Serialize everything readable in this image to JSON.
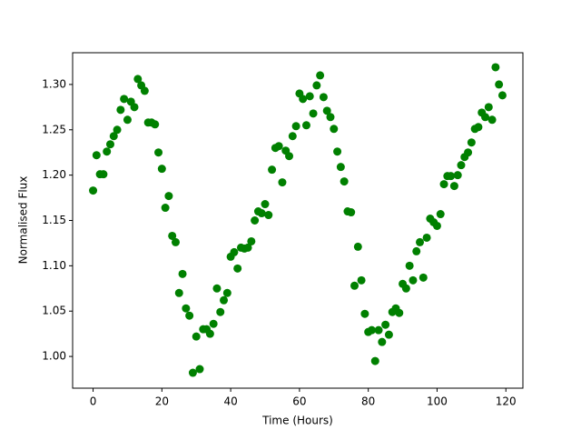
{
  "chart_data": {
    "type": "scatter",
    "xlabel": "Time (Hours)",
    "ylabel": "Normalised Flux",
    "color": "#008000",
    "x": [
      0,
      1,
      2,
      3,
      4,
      5,
      6,
      7,
      8,
      9,
      10,
      11,
      12,
      13,
      14,
      15,
      16,
      17,
      18,
      19,
      20,
      21,
      22,
      23,
      24,
      25,
      26,
      27,
      28,
      29,
      30,
      31,
      32,
      33,
      34,
      35,
      36,
      37,
      38,
      39,
      40,
      41,
      42,
      43,
      44,
      45,
      46,
      47,
      48,
      49,
      50,
      51,
      52,
      53,
      54,
      55,
      56,
      57,
      58,
      59,
      60,
      61,
      62,
      63,
      64,
      65,
      66,
      67,
      68,
      69,
      70,
      71,
      72,
      73,
      74,
      75,
      76,
      77,
      78,
      79,
      80,
      81,
      82,
      83,
      84,
      85,
      86,
      87,
      88,
      89,
      90,
      91,
      92,
      93,
      94,
      95,
      96,
      97,
      98,
      99,
      100,
      101,
      102,
      103,
      104,
      105,
      106,
      107,
      108,
      109,
      110,
      111,
      112,
      113,
      114,
      115,
      116,
      117,
      118,
      119
    ],
    "y": [
      1.183,
      1.222,
      1.201,
      1.201,
      1.226,
      1.234,
      1.243,
      1.25,
      1.272,
      1.284,
      1.261,
      1.281,
      1.275,
      1.306,
      1.299,
      1.293,
      1.258,
      1.258,
      1.256,
      1.225,
      1.207,
      1.164,
      1.177,
      1.133,
      1.126,
      1.07,
      1.091,
      1.053,
      1.045,
      0.982,
      1.022,
      0.986,
      1.03,
      1.03,
      1.025,
      1.036,
      1.075,
      1.049,
      1.062,
      1.07,
      1.11,
      1.115,
      1.097,
      1.12,
      1.119,
      1.12,
      1.127,
      1.15,
      1.16,
      1.158,
      1.168,
      1.156,
      1.206,
      1.23,
      1.232,
      1.192,
      1.227,
      1.221,
      1.243,
      1.254,
      1.29,
      1.284,
      1.255,
      1.287,
      1.268,
      1.299,
      1.31,
      1.286,
      1.271,
      1.264,
      1.251,
      1.226,
      1.209,
      1.193,
      1.16,
      1.159,
      1.078,
      1.121,
      1.084,
      1.047,
      1.027,
      1.029,
      0.995,
      1.029,
      1.016,
      1.035,
      1.024,
      1.049,
      1.053,
      1.048,
      1.08,
      1.075,
      1.1,
      1.084,
      1.116,
      1.126,
      1.087,
      1.131,
      1.152,
      1.148,
      1.144,
      1.157,
      1.19,
      1.199,
      1.199,
      1.188,
      1.2,
      1.211,
      1.22,
      1.225,
      1.236,
      1.251,
      1.253,
      1.269,
      1.264,
      1.275,
      1.261,
      1.319,
      1.3,
      1.288
    ],
    "xlim": [
      -5.95,
      124.95
    ],
    "ylim": [
      0.965,
      1.335
    ],
    "xticks": [
      0,
      20,
      40,
      60,
      80,
      100,
      120
    ],
    "yticks": [
      {
        "value": 1,
        "label": "1.00"
      },
      1.05,
      {
        "value": 1.1,
        "label": "1.10"
      },
      1.15,
      {
        "value": 1.2,
        "label": "1.20"
      },
      1.25,
      {
        "value": 1.3,
        "label": "1.30"
      }
    ]
  }
}
